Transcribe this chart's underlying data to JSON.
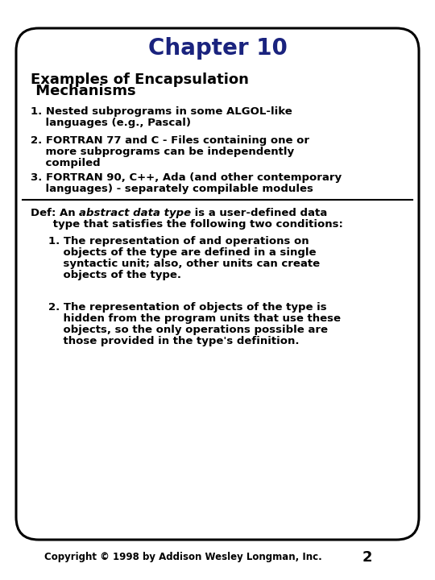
{
  "title": "Chapter 10",
  "title_color": "#1a237e",
  "title_fontsize": 20,
  "subtitle_line1": "Examples of Encapsulation",
  "subtitle_line2": " Mechanisms",
  "subtitle_fontsize": 13,
  "body_fontsize": 9.5,
  "small_fontsize": 8.5,
  "background_color": "#ffffff",
  "border_color": "#000000",
  "text_color": "#000000",
  "item1_lines": [
    "1. Nested subprograms in some ALGOL-like",
    "    languages (e.g., Pascal)"
  ],
  "item2_lines": [
    "2. FORTRAN 77 and C - Files containing one or",
    "    more subprograms can be independently",
    "    compiled"
  ],
  "item3_lines": [
    "3. FORTRAN 90, C++, Ada (and other contemporary",
    "    languages) - separately compilable modules"
  ],
  "def_prefix": "Def: An ",
  "def_italic": "abstract data type",
  "def_suffix": " is a user-defined data",
  "def_line2": "      type that satisfies the following two conditions:",
  "sub1_lines": [
    "1. The representation of and operations on",
    "    objects of the type are defined in a single",
    "    syntactic unit; also, other units can create",
    "    objects of the type."
  ],
  "sub2_lines": [
    "2. The representation of objects of the type is",
    "    hidden from the program units that use these",
    "    objects, so the only operations possible are",
    "    those provided in the type's definition."
  ],
  "footer": "Copyright © 1998 by Addison Wesley Longman, Inc.",
  "page_number": "2",
  "footer_fontsize": 8.5
}
